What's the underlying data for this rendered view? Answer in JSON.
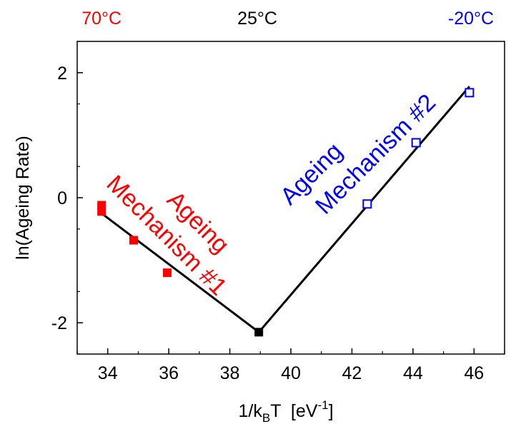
{
  "chart_data": {
    "type": "scatter",
    "title": "",
    "xlabel": {
      "prefix": "1/k",
      "sub": "B",
      "mid": "T  [eV",
      "sup": "-1",
      "suffix": "]"
    },
    "ylabel": "ln(Ageing Rate)",
    "xlim": [
      33.0,
      47.0
    ],
    "ylim": [
      -2.5,
      2.5
    ],
    "xticks": [
      34,
      36,
      38,
      40,
      42,
      44,
      46
    ],
    "yticks": [
      -2,
      0,
      2
    ],
    "grid": false,
    "top_labels": [
      {
        "text": "70°C",
        "x": 33.8,
        "color": "#ff0000"
      },
      {
        "text": "25°C",
        "x": 38.9,
        "color": "#000000"
      },
      {
        "text": "-20°C",
        "x": 45.9,
        "color": "#0000ff"
      }
    ],
    "series": [
      {
        "color": "#ff0000",
        "marker": "filled-square",
        "points": [
          [
            33.8,
            -0.12
          ],
          [
            33.8,
            -0.22
          ],
          [
            34.85,
            -0.68
          ],
          [
            35.95,
            -1.2
          ]
        ]
      },
      {
        "color": "#000000",
        "marker": "filled-square",
        "points": [
          [
            38.95,
            -2.15
          ]
        ]
      },
      {
        "color": "#0000ff",
        "marker": "open-square",
        "points": [
          [
            42.5,
            -0.1
          ],
          [
            44.1,
            0.88
          ],
          [
            45.85,
            1.68
          ]
        ]
      }
    ],
    "fit_lines": [
      {
        "color": "#000000",
        "points": [
          [
            33.8,
            -0.25
          ],
          [
            38.95,
            -2.15
          ]
        ]
      },
      {
        "color": "#000000",
        "points": [
          [
            38.95,
            -2.15
          ],
          [
            45.85,
            1.78
          ]
        ]
      }
    ],
    "annotations": [
      {
        "lines": [
          "Ageing",
          "Mechanism #1"
        ],
        "color": "#ff0000"
      },
      {
        "lines": [
          "Ageing",
          "Mechanism #2"
        ],
        "color": "#0000ff"
      }
    ]
  }
}
